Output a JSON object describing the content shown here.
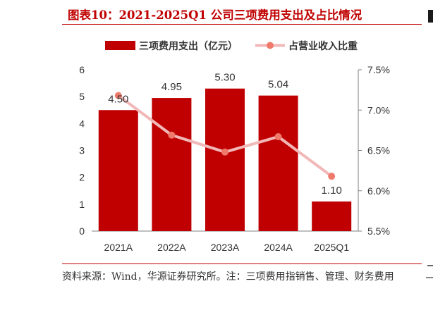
{
  "title": "图表10：2021-2025Q1 公司三项费用支出及占比情况",
  "source": "资料来源：Wind，华源证券研究所。注：三项费用指销售、管理、财务费用",
  "chart_data": {
    "type": "bar+line",
    "categories": [
      "2021A",
      "2022A",
      "2023A",
      "2024A",
      "2025Q1"
    ],
    "series": [
      {
        "name": "三项费用支出（亿元）",
        "type": "bar",
        "axis": "left",
        "color": "#c00000",
        "values": [
          4.5,
          4.95,
          5.3,
          5.04,
          1.1
        ],
        "labels": [
          "4.50",
          "4.95",
          "5.30",
          "5.04",
          "1.10"
        ]
      },
      {
        "name": "占营业收入比重",
        "type": "line",
        "axis": "right",
        "color": "#f2b8b8",
        "marker_color": "#ef7a6c",
        "values": [
          7.18,
          6.69,
          6.48,
          6.67,
          6.18
        ]
      }
    ],
    "y_left": {
      "min": 0,
      "max": 6,
      "ticks": [
        "0",
        "1",
        "2",
        "3",
        "4",
        "5",
        "6"
      ]
    },
    "y_right": {
      "min": 5.5,
      "max": 7.5,
      "ticks": [
        "5.5%",
        "6.0%",
        "6.5%",
        "7.0%",
        "7.5%"
      ]
    },
    "legend_position": "top",
    "grid": false
  }
}
